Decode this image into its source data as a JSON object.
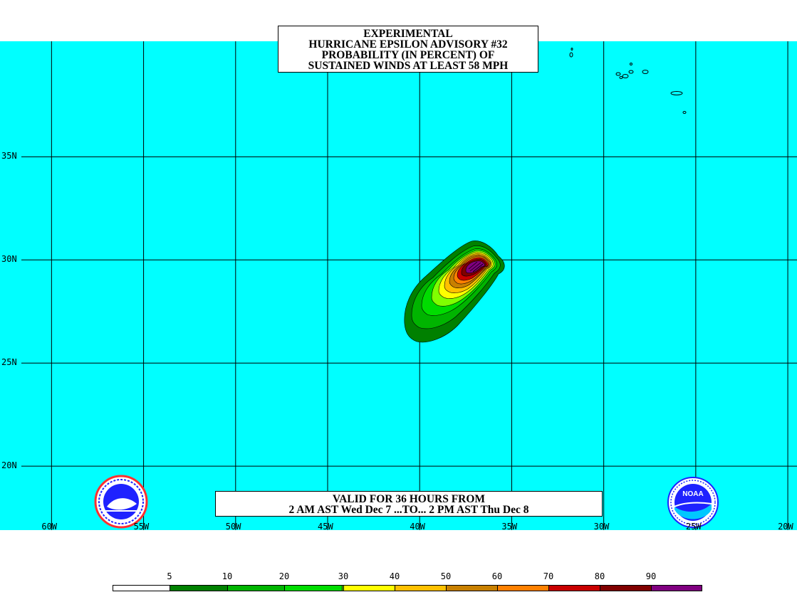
{
  "title": {
    "lines": [
      "EXPERIMENTAL",
      "HURRICANE EPSILON ADVISORY #32",
      "PROBABILITY (IN PERCENT) OF",
      "SUSTAINED WINDS AT LEAST 58 MPH"
    ]
  },
  "valid": {
    "line1": "VALID FOR 36 HOURS FROM",
    "line2": "2 AM AST Wed Dec 7 ...TO... 2 PM AST Thu Dec 8"
  },
  "map": {
    "ocean_color": "#00ffff",
    "lon_range": [
      -62.8,
      -19.5
    ],
    "lat_range": [
      16.9,
      40.6
    ],
    "lat_labels": [
      {
        "value": 35,
        "label": "35N"
      },
      {
        "value": 30,
        "label": "30N"
      },
      {
        "value": 25,
        "label": "25N"
      },
      {
        "value": 20,
        "label": "20N"
      }
    ],
    "lon_labels": [
      {
        "value": -60,
        "label": "60W"
      },
      {
        "value": -55,
        "label": "55W"
      },
      {
        "value": -50,
        "label": "50W"
      },
      {
        "value": -45,
        "label": "45W"
      },
      {
        "value": -40,
        "label": "40W"
      },
      {
        "value": -35,
        "label": "35W"
      },
      {
        "value": -30,
        "label": "30W"
      },
      {
        "value": -25,
        "label": "25W"
      },
      {
        "value": -20,
        "label": "20W"
      }
    ]
  },
  "legend": {
    "values": [
      "5",
      "10",
      "20",
      "30",
      "40",
      "50",
      "60",
      "70",
      "80",
      "90"
    ],
    "colors": [
      "#ffffff",
      "#008000",
      "#00b400",
      "#00dc00",
      "#80ff00",
      "#ffff00",
      "#ffc000",
      "#c88000",
      "#ff8000",
      "#c80000",
      "#800000",
      "#800080"
    ]
  },
  "logos": {
    "left": "national-weather-service-logo",
    "right": "noaa-logo",
    "right_text": "NOAA"
  }
}
